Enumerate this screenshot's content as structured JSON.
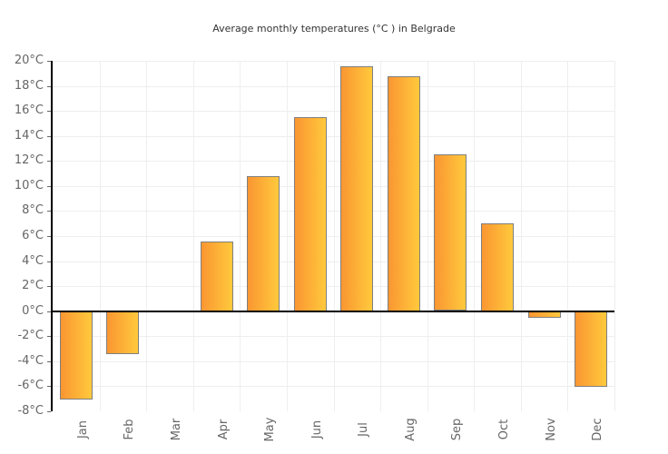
{
  "title": "Average monthly temperatures (°C ) in Belgrade",
  "chart_data": {
    "type": "bar",
    "title": "Average monthly temperatures (°C ) in Belgrade",
    "categories": [
      "Jan",
      "Feb",
      "Mar",
      "Apr",
      "May",
      "Jun",
      "Jul",
      "Aug",
      "Sep",
      "Oct",
      "Nov",
      "Dec"
    ],
    "values": [
      -7,
      -3.4,
      0,
      5.6,
      10.8,
      15.5,
      19.6,
      18.8,
      12.5,
      7,
      -0.5,
      -6
    ],
    "xlabel": "",
    "ylabel": "",
    "ylim": [
      -8,
      20
    ],
    "ytick_step": 2,
    "ytick_labels": [
      "20°C",
      "18°C",
      "16°C",
      "14°C",
      "12°C",
      "10°C",
      "8°C",
      "6°C",
      "4°C",
      "2°C",
      "0°C",
      "-2°C",
      "-4°C",
      "-6°C",
      "-8°C"
    ],
    "grid": true,
    "legend": false,
    "colors": {
      "bar_gradient_left": "#FA9632",
      "bar_gradient_right": "#FFC93C",
      "bar_border": "#7f7f7f",
      "gridline": "#eeeeee",
      "axis": "#000000",
      "tick_label": "#666666",
      "title_text": "#333333",
      "background": "#ffffff"
    }
  }
}
